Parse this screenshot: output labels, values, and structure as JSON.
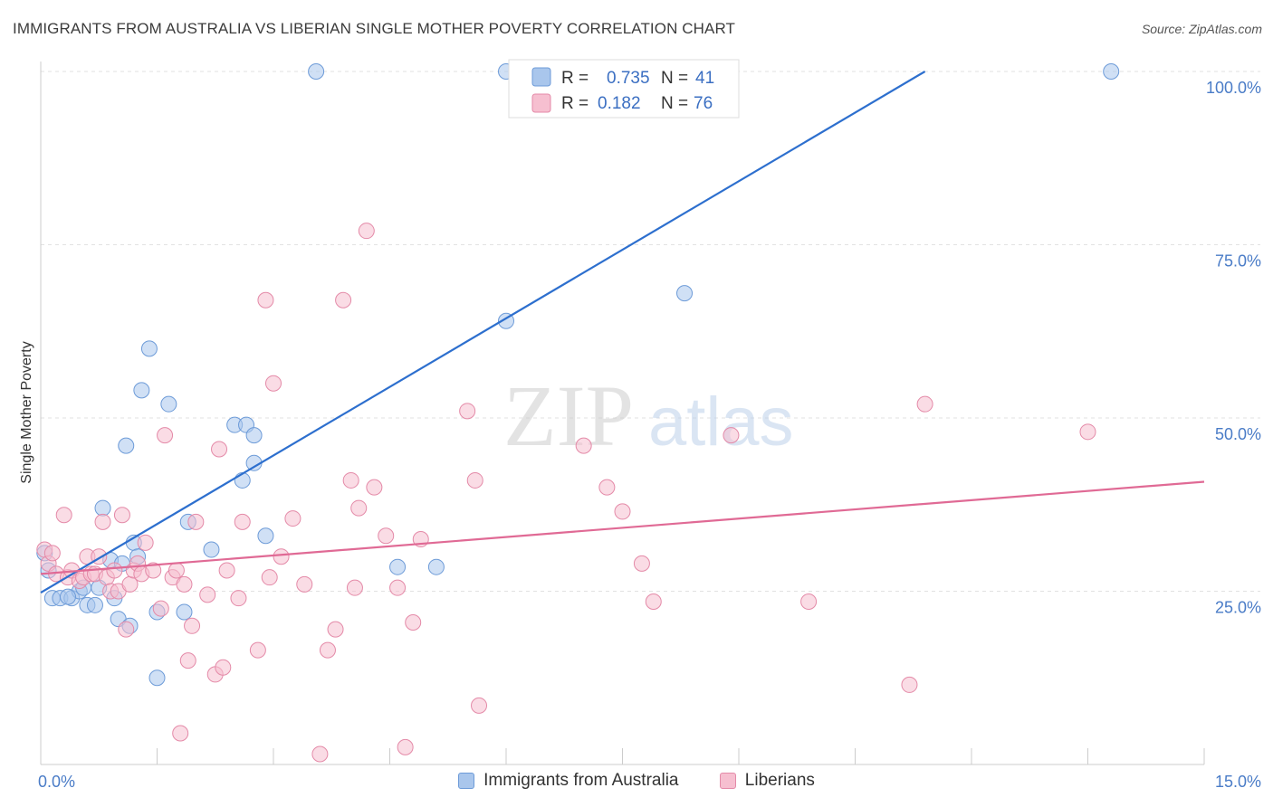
{
  "header": {
    "title": "IMMIGRANTS FROM AUSTRALIA VS LIBERIAN SINGLE MOTHER POVERTY CORRELATION CHART",
    "source": "Source: ZipAtlas.com"
  },
  "watermark": {
    "zip": "ZIP",
    "atlas": "atlas"
  },
  "colors": {
    "blue_fill": "#a9c6ec",
    "blue_stroke": "#6d9bd8",
    "blue_line": "#2d6fce",
    "pink_fill": "#f6bfd0",
    "pink_stroke": "#e48aa8",
    "pink_line": "#e06a95"
  },
  "stats": [
    {
      "r_label": "R =",
      "r_value": "0.735",
      "n_label": "N =",
      "n_value": "41"
    },
    {
      "r_label": "R =",
      "r_value": "0.182",
      "n_label": "N =",
      "n_value": "76"
    }
  ],
  "legend": {
    "items": [
      "Immigrants from Australia",
      "Liberians"
    ]
  },
  "chart_data": {
    "type": "scatter",
    "ylabel": "Single Mother Poverty",
    "xlim": [
      0,
      15
    ],
    "ylim": [
      0,
      100
    ],
    "x_ticks": [
      "0.0%",
      "15.0%"
    ],
    "y_ticks": [
      {
        "value": 100,
        "label": "100.0%"
      },
      {
        "value": 75,
        "label": "75.0%"
      },
      {
        "value": 50,
        "label": "50.0%"
      },
      {
        "value": 25,
        "label": "25.0%"
      }
    ],
    "grid": true,
    "legend_position": "bottom",
    "series": [
      {
        "name": "Immigrants from Australia",
        "r": 0.735,
        "n": 41,
        "trend": {
          "x": [
            0,
            11.4
          ],
          "y": [
            24.8,
            100
          ]
        },
        "points": [
          [
            0.05,
            30.5
          ],
          [
            0.1,
            28
          ],
          [
            0.15,
            24
          ],
          [
            0.25,
            24
          ],
          [
            0.4,
            24
          ],
          [
            0.5,
            25
          ],
          [
            0.55,
            25.5
          ],
          [
            0.6,
            23
          ],
          [
            0.7,
            23
          ],
          [
            0.8,
            37
          ],
          [
            0.9,
            29.5
          ],
          [
            1.0,
            21
          ],
          [
            1.05,
            29
          ],
          [
            1.15,
            20
          ],
          [
            1.2,
            32
          ],
          [
            1.25,
            30
          ],
          [
            1.3,
            54
          ],
          [
            1.1,
            46
          ],
          [
            1.4,
            60
          ],
          [
            1.5,
            22
          ],
          [
            1.5,
            12.5
          ],
          [
            1.65,
            52
          ],
          [
            1.85,
            22
          ],
          [
            1.9,
            35
          ],
          [
            2.2,
            31
          ],
          [
            2.5,
            49
          ],
          [
            2.6,
            41
          ],
          [
            2.65,
            49
          ],
          [
            2.75,
            47.5
          ],
          [
            2.75,
            43.5
          ],
          [
            2.9,
            33
          ],
          [
            3.55,
            100
          ],
          [
            4.6,
            28.5
          ],
          [
            5.1,
            28.5
          ],
          [
            6.0,
            64
          ],
          [
            6.0,
            100
          ],
          [
            8.3,
            68
          ],
          [
            13.8,
            100
          ],
          [
            0.35,
            24.2
          ],
          [
            0.75,
            25.5
          ],
          [
            0.95,
            24
          ]
        ]
      },
      {
        "name": "Liberians",
        "r": 0.182,
        "n": 76,
        "trend": {
          "x": [
            0,
            15
          ],
          "y": [
            27.5,
            40.8
          ]
        },
        "points": [
          [
            0.05,
            31
          ],
          [
            0.1,
            29
          ],
          [
            0.15,
            30.5
          ],
          [
            0.2,
            27.5
          ],
          [
            0.3,
            36
          ],
          [
            0.35,
            27
          ],
          [
            0.4,
            28
          ],
          [
            0.5,
            26.5
          ],
          [
            0.55,
            27
          ],
          [
            0.6,
            30
          ],
          [
            0.65,
            27.5
          ],
          [
            0.7,
            27.5
          ],
          [
            0.75,
            30
          ],
          [
            0.8,
            35
          ],
          [
            0.85,
            27
          ],
          [
            0.9,
            25
          ],
          [
            0.95,
            28
          ],
          [
            1.0,
            25
          ],
          [
            1.05,
            36
          ],
          [
            1.1,
            19.5
          ],
          [
            1.15,
            26
          ],
          [
            1.2,
            28
          ],
          [
            1.25,
            29
          ],
          [
            1.3,
            27.5
          ],
          [
            1.35,
            32
          ],
          [
            1.45,
            28
          ],
          [
            1.55,
            22.5
          ],
          [
            1.6,
            47.5
          ],
          [
            1.7,
            27
          ],
          [
            1.75,
            28
          ],
          [
            1.8,
            4.5
          ],
          [
            1.85,
            26
          ],
          [
            1.9,
            15
          ],
          [
            1.95,
            20
          ],
          [
            2.0,
            35
          ],
          [
            2.15,
            24.5
          ],
          [
            2.25,
            13
          ],
          [
            2.3,
            45.5
          ],
          [
            2.35,
            14
          ],
          [
            2.4,
            28
          ],
          [
            2.55,
            24
          ],
          [
            2.6,
            35
          ],
          [
            2.8,
            16.5
          ],
          [
            2.9,
            67
          ],
          [
            2.95,
            27
          ],
          [
            3.0,
            55
          ],
          [
            3.1,
            30
          ],
          [
            3.25,
            35.5
          ],
          [
            3.4,
            26
          ],
          [
            3.6,
            1.5
          ],
          [
            3.7,
            16.5
          ],
          [
            3.8,
            19.5
          ],
          [
            3.9,
            67
          ],
          [
            4.0,
            41
          ],
          [
            4.05,
            25.5
          ],
          [
            4.1,
            37
          ],
          [
            4.2,
            77
          ],
          [
            4.3,
            40
          ],
          [
            4.45,
            33
          ],
          [
            4.6,
            25.5
          ],
          [
            4.7,
            2.5
          ],
          [
            4.8,
            20.5
          ],
          [
            4.9,
            32.5
          ],
          [
            5.5,
            51
          ],
          [
            5.6,
            41
          ],
          [
            5.65,
            8.5
          ],
          [
            7.0,
            46
          ],
          [
            7.3,
            40
          ],
          [
            7.5,
            36.5
          ],
          [
            7.75,
            29
          ],
          [
            7.9,
            23.5
          ],
          [
            8.9,
            47.5
          ],
          [
            9.9,
            23.5
          ],
          [
            11.2,
            11.5
          ],
          [
            11.4,
            52
          ],
          [
            13.5,
            48
          ]
        ]
      }
    ]
  }
}
